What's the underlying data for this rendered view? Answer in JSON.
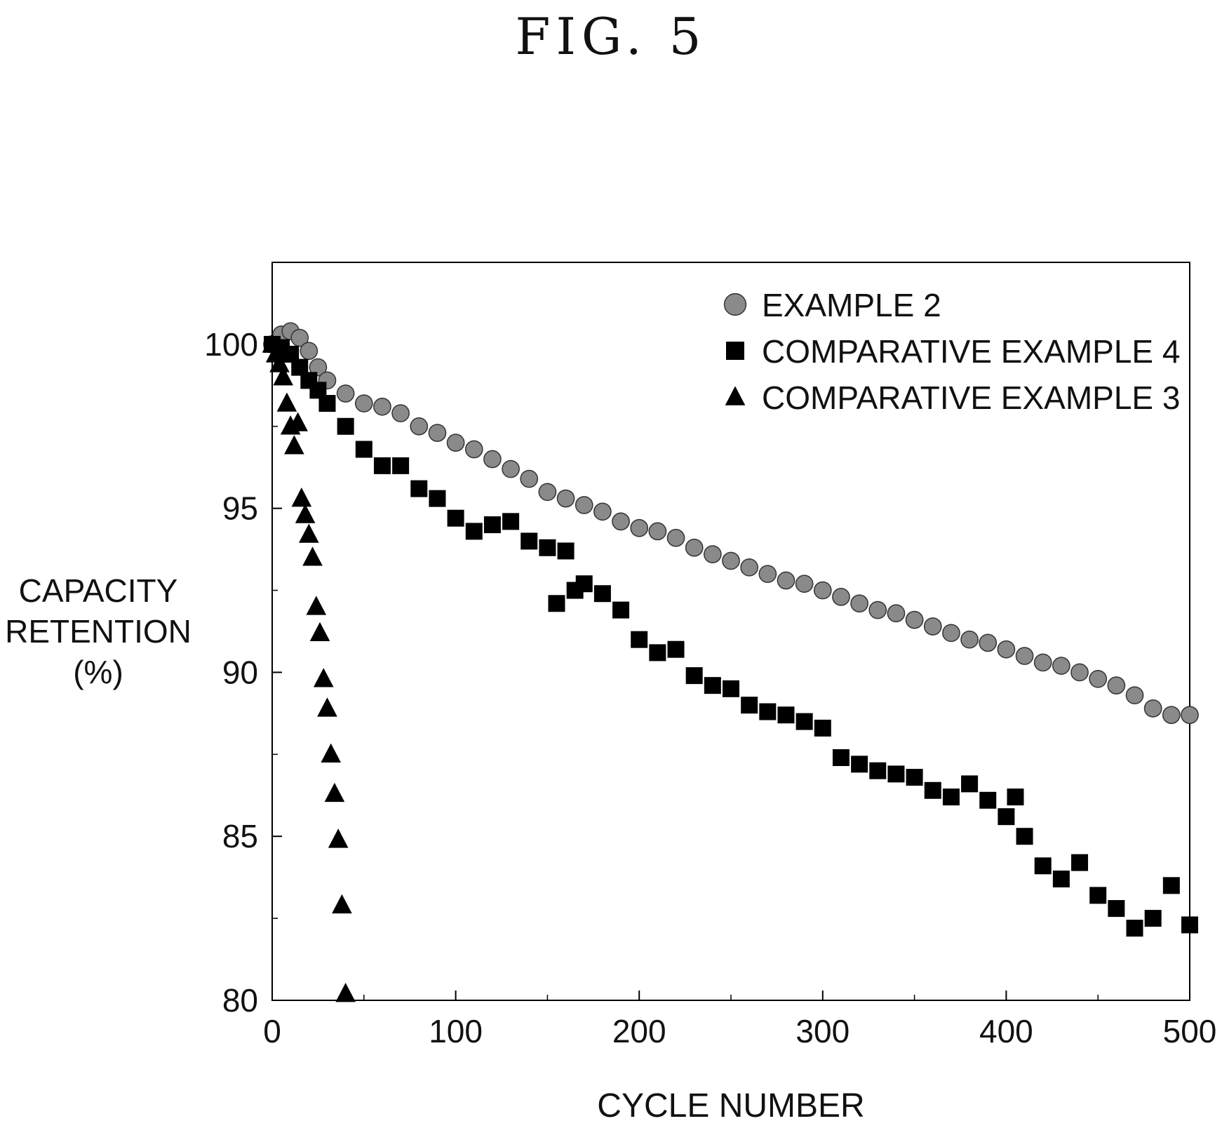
{
  "figure_label": "FIG. 5",
  "chart_data": {
    "type": "scatter",
    "title": "",
    "xlabel": "CYCLE NUMBER",
    "ylabel_lines": [
      "CAPACITY",
      "RETENTION",
      "(%)"
    ],
    "xlim": [
      0,
      500
    ],
    "ylim": [
      80,
      102.5
    ],
    "xticks": [
      0,
      100,
      200,
      300,
      400,
      500
    ],
    "yticks": [
      80,
      85,
      90,
      95,
      100
    ],
    "grid": false,
    "legend": "top-right",
    "series": [
      {
        "name": "EXAMPLE 2",
        "marker": "circle",
        "color": "#8a8a8a",
        "x": [
          0,
          5,
          10,
          15,
          20,
          25,
          30,
          40,
          50,
          60,
          70,
          80,
          90,
          100,
          110,
          120,
          130,
          140,
          150,
          160,
          170,
          180,
          190,
          200,
          210,
          220,
          230,
          240,
          250,
          260,
          270,
          280,
          290,
          300,
          310,
          320,
          330,
          340,
          350,
          360,
          370,
          380,
          390,
          400,
          410,
          420,
          430,
          440,
          450,
          460,
          470,
          480,
          490,
          500
        ],
        "y": [
          100.0,
          100.3,
          100.4,
          100.2,
          99.8,
          99.3,
          98.9,
          98.5,
          98.2,
          98.1,
          97.9,
          97.5,
          97.3,
          97.0,
          96.8,
          96.5,
          96.2,
          95.9,
          95.5,
          95.3,
          95.1,
          94.9,
          94.6,
          94.4,
          94.3,
          94.1,
          93.8,
          93.6,
          93.4,
          93.2,
          93.0,
          92.8,
          92.7,
          92.5,
          92.3,
          92.1,
          91.9,
          91.8,
          91.6,
          91.4,
          91.2,
          91.0,
          90.9,
          90.7,
          90.5,
          90.3,
          90.2,
          90.0,
          89.8,
          89.6,
          89.3,
          88.9,
          88.7,
          88.7
        ]
      },
      {
        "name": "COMPARATIVE EXAMPLE 4",
        "marker": "square",
        "color": "#000000",
        "x": [
          0,
          5,
          10,
          15,
          20,
          25,
          30,
          40,
          50,
          60,
          70,
          80,
          90,
          100,
          110,
          120,
          130,
          140,
          150,
          155,
          160,
          165,
          170,
          180,
          190,
          200,
          210,
          220,
          230,
          240,
          250,
          260,
          270,
          280,
          290,
          300,
          310,
          320,
          330,
          340,
          350,
          360,
          370,
          380,
          390,
          400,
          405,
          410,
          420,
          430,
          440,
          450,
          460,
          470,
          480,
          490,
          500
        ],
        "y": [
          100.0,
          99.9,
          99.7,
          99.3,
          98.9,
          98.6,
          98.2,
          97.5,
          96.8,
          96.3,
          96.3,
          95.6,
          95.3,
          94.7,
          94.3,
          94.5,
          94.6,
          94.0,
          93.8,
          92.1,
          93.7,
          92.5,
          92.7,
          92.4,
          91.9,
          91.0,
          90.6,
          90.7,
          89.9,
          89.6,
          89.5,
          89.0,
          88.8,
          88.7,
          88.5,
          88.3,
          87.4,
          87.2,
          87.0,
          86.9,
          86.8,
          86.4,
          86.2,
          86.6,
          86.1,
          85.6,
          86.2,
          85.0,
          84.1,
          83.7,
          84.2,
          83.2,
          82.8,
          82.2,
          82.5,
          83.5,
          82.3
        ]
      },
      {
        "name": "COMPARATIVE EXAMPLE 3",
        "marker": "triangle",
        "color": "#000000",
        "x": [
          0,
          2,
          4,
          6,
          8,
          10,
          12,
          14,
          16,
          18,
          20,
          22,
          24,
          26,
          28,
          30,
          32,
          34,
          36,
          38,
          40
        ],
        "y": [
          100.0,
          99.7,
          99.4,
          99.0,
          98.2,
          97.5,
          96.9,
          97.6,
          95.3,
          94.8,
          94.2,
          93.5,
          92.0,
          91.2,
          89.8,
          88.9,
          87.5,
          86.3,
          84.9,
          82.9,
          80.2
        ]
      }
    ]
  }
}
